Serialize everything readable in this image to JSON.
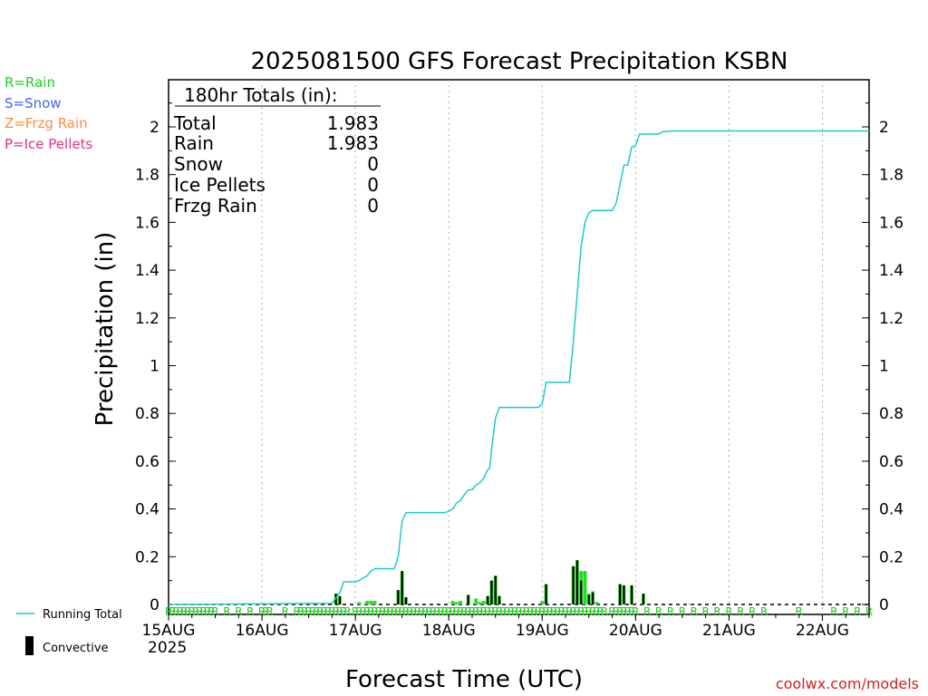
{
  "legend_types": [
    {
      "label": "R=Rain",
      "color": "#22cc22"
    },
    {
      "label": "S=Snow",
      "color": "#4466ee"
    },
    {
      "label": "Z=Frzg Rain",
      "color": "#ff8c3c"
    },
    {
      "label": "P=Ice Pellets",
      "color": "#e0308c"
    }
  ],
  "bottom_legend": {
    "running_total_label": "Running Total",
    "convective_label": "Convective"
  },
  "totals_box": {
    "heading": "180hr Totals (in):",
    "rows": [
      {
        "label": "Total",
        "value": "1.983"
      },
      {
        "label": "Rain",
        "value": "1.983"
      },
      {
        "label": "Snow",
        "value": "0"
      },
      {
        "label": "Ice Pellets",
        "value": "0"
      },
      {
        "label": "Frzg Rain",
        "value": "0"
      }
    ]
  },
  "watermark": "coolwx.com/models",
  "chart_data": {
    "type": "line",
    "title": "2025081500 GFS Forecast Precipitation KSBN",
    "xlabel": "Forecast Time (UTC)",
    "ylabel": "Precipitation (in)",
    "ylim": [
      0,
      2.2
    ],
    "xlim_hours": [
      0,
      180
    ],
    "yticks": [
      0,
      0.2,
      0.4,
      0.6,
      0.8,
      1,
      1.2,
      1.4,
      1.6,
      1.8,
      2
    ],
    "ytick_labels": [
      "0",
      "0.2",
      "0.4",
      "0.6",
      "0.8",
      "1",
      "1.2",
      "1.4",
      "1.6",
      "1.8",
      "2"
    ],
    "xticks": [
      {
        "hour": 0,
        "label": "15AUG"
      },
      {
        "hour": 24,
        "label": "16AUG"
      },
      {
        "hour": 48,
        "label": "17AUG"
      },
      {
        "hour": 72,
        "label": "18AUG"
      },
      {
        "hour": 96,
        "label": "19AUG"
      },
      {
        "hour": 120,
        "label": "20AUG"
      },
      {
        "hour": 144,
        "label": "21AUG"
      },
      {
        "hour": 168,
        "label": "22AUG"
      }
    ],
    "year_label": "2025",
    "grid": "vertical dotted at day boundaries",
    "running_total": {
      "name": "Running Total",
      "color": "#1ecbcb",
      "points": [
        [
          0,
          0
        ],
        [
          42,
          0.005
        ],
        [
          44,
          0.05
        ],
        [
          45,
          0.095
        ],
        [
          48,
          0.095
        ],
        [
          49,
          0.1
        ],
        [
          50,
          0.11
        ],
        [
          51,
          0.12
        ],
        [
          52,
          0.14
        ],
        [
          53,
          0.15
        ],
        [
          58,
          0.15
        ],
        [
          59,
          0.2
        ],
        [
          60,
          0.35
        ],
        [
          61,
          0.385
        ],
        [
          71,
          0.385
        ],
        [
          72,
          0.39
        ],
        [
          73,
          0.4
        ],
        [
          74,
          0.425
        ],
        [
          75,
          0.435
        ],
        [
          76,
          0.46
        ],
        [
          77,
          0.48
        ],
        [
          78,
          0.48
        ],
        [
          79,
          0.5
        ],
        [
          80,
          0.51
        ],
        [
          81,
          0.53
        ],
        [
          82,
          0.565
        ],
        [
          82.5,
          0.57
        ],
        [
          83,
          0.65
        ],
        [
          84,
          0.78
        ],
        [
          85,
          0.825
        ],
        [
          95,
          0.825
        ],
        [
          96,
          0.84
        ],
        [
          97,
          0.93
        ],
        [
          103,
          0.93
        ],
        [
          104,
          1.1
        ],
        [
          105,
          1.3
        ],
        [
          106,
          1.5
        ],
        [
          106.5,
          1.55
        ],
        [
          107,
          1.6
        ],
        [
          108,
          1.64
        ],
        [
          109,
          1.65
        ],
        [
          114,
          1.65
        ],
        [
          115,
          1.68
        ],
        [
          116,
          1.76
        ],
        [
          117,
          1.84
        ],
        [
          118,
          1.84
        ],
        [
          119,
          1.915
        ],
        [
          120,
          1.92
        ],
        [
          121,
          1.97
        ],
        [
          126,
          1.97
        ],
        [
          127,
          1.98
        ],
        [
          128,
          1.98
        ],
        [
          129,
          1.983
        ],
        [
          180,
          1.983
        ]
      ]
    },
    "precip_bars": [
      {
        "hour": 43,
        "value": 0.045
      },
      {
        "hour": 44,
        "value": 0.035
      },
      {
        "hour": 49,
        "value": 0.01
      },
      {
        "hour": 51,
        "value": 0.015
      },
      {
        "hour": 52,
        "value": 0.015
      },
      {
        "hour": 53,
        "value": 0.015
      },
      {
        "hour": 59,
        "value": 0.06
      },
      {
        "hour": 60,
        "value": 0.14
      },
      {
        "hour": 61,
        "value": 0.03
      },
      {
        "hour": 73,
        "value": 0.015
      },
      {
        "hour": 74,
        "value": 0.01
      },
      {
        "hour": 75,
        "value": 0.015
      },
      {
        "hour": 77,
        "value": 0.04
      },
      {
        "hour": 79,
        "value": 0.025
      },
      {
        "hour": 80,
        "value": 0.01
      },
      {
        "hour": 81,
        "value": 0.015
      },
      {
        "hour": 82,
        "value": 0.035
      },
      {
        "hour": 83,
        "value": 0.1
      },
      {
        "hour": 84,
        "value": 0.12
      },
      {
        "hour": 85,
        "value": 0.035
      },
      {
        "hour": 96,
        "value": 0.015
      },
      {
        "hour": 97,
        "value": 0.085
      },
      {
        "hour": 104,
        "value": 0.16
      },
      {
        "hour": 105,
        "value": 0.185
      },
      {
        "hour": 106,
        "value": 0.14
      },
      {
        "hour": 107,
        "value": 0.14
      },
      {
        "hour": 108,
        "value": 0.045
      },
      {
        "hour": 109,
        "value": 0.055
      },
      {
        "hour": 110,
        "value": 0.01
      },
      {
        "hour": 116,
        "value": 0.085
      },
      {
        "hour": 117,
        "value": 0.08
      },
      {
        "hour": 119,
        "value": 0.08
      },
      {
        "hour": 122,
        "value": 0.045
      },
      {
        "hour": 134,
        "value": 0.003
      }
    ],
    "convective_bars": [
      {
        "hour": 43,
        "value": 0.045
      },
      {
        "hour": 44,
        "value": 0.035
      },
      {
        "hour": 59,
        "value": 0.06
      },
      {
        "hour": 60,
        "value": 0.14
      },
      {
        "hour": 61,
        "value": 0.03
      },
      {
        "hour": 77,
        "value": 0.04
      },
      {
        "hour": 82,
        "value": 0.035
      },
      {
        "hour": 83,
        "value": 0.1
      },
      {
        "hour": 84,
        "value": 0.12
      },
      {
        "hour": 85,
        "value": 0.035
      },
      {
        "hour": 97,
        "value": 0.085
      },
      {
        "hour": 104,
        "value": 0.16
      },
      {
        "hour": 105,
        "value": 0.185
      },
      {
        "hour": 106,
        "value": 0.1
      },
      {
        "hour": 108,
        "value": 0.04
      },
      {
        "hour": 109,
        "value": 0.05
      },
      {
        "hour": 116,
        "value": 0.085
      },
      {
        "hour": 117,
        "value": 0.08
      },
      {
        "hour": 119,
        "value": 0.08
      },
      {
        "hour": 122,
        "value": 0.045
      }
    ],
    "type_markers": {
      "letter": "R",
      "color": "#22cc22",
      "hours": [
        0,
        1,
        2,
        3,
        4,
        5,
        6,
        7,
        8,
        9,
        10,
        11,
        12,
        15,
        18,
        21,
        24,
        25,
        26,
        30,
        33,
        34,
        35,
        36,
        37,
        38,
        39,
        40,
        41,
        42,
        43,
        44,
        45,
        46,
        48,
        49,
        50,
        51,
        52,
        53,
        54,
        55,
        56,
        57,
        58,
        59,
        60,
        61,
        62,
        63,
        64,
        65,
        66,
        67,
        68,
        69,
        70,
        71,
        72,
        73,
        74,
        75,
        76,
        77,
        78,
        79,
        80,
        81,
        82,
        83,
        84,
        85,
        86,
        87,
        88,
        89,
        90,
        91,
        92,
        93,
        94,
        95,
        96,
        97,
        98,
        99,
        100,
        101,
        102,
        103,
        104,
        105,
        106,
        107,
        108,
        109,
        110,
        111,
        112,
        114,
        115,
        116,
        117,
        118,
        119,
        120,
        123,
        126,
        129,
        132,
        135,
        138,
        141,
        144,
        147,
        150,
        153,
        162,
        171,
        174,
        177,
        180
      ]
    }
  }
}
